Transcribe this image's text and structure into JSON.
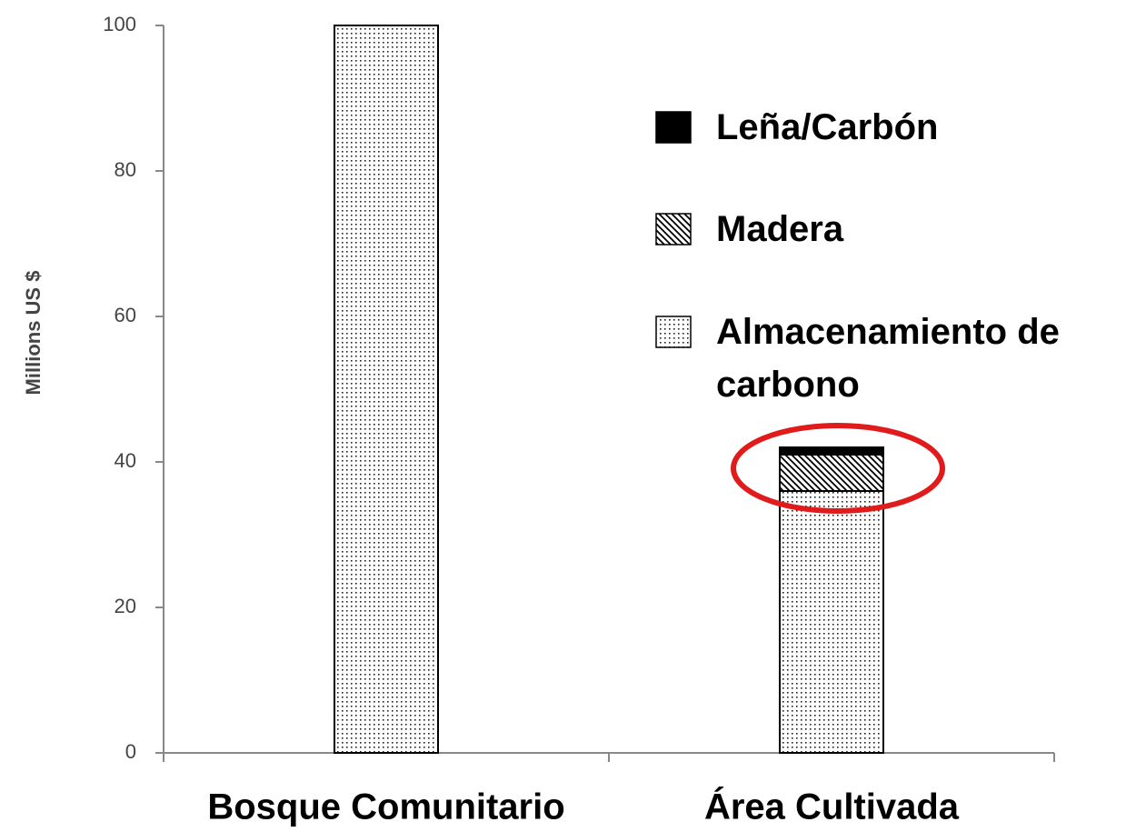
{
  "chart_data": {
    "type": "stacked_bar",
    "categories": [
      "Bosque Comunitario",
      "Área Cultivada"
    ],
    "y_label": "Millions US $",
    "ylim": [
      0,
      100
    ],
    "yticks": [
      0,
      20,
      40,
      60,
      80,
      100
    ],
    "series": [
      {
        "name": "Almacenamiento de carbono",
        "color": "#000000",
        "pattern": "dots",
        "values": [
          100,
          36
        ]
      },
      {
        "name": "Madera",
        "color": "#000000",
        "pattern": "hatch",
        "values": [
          0,
          5
        ]
      },
      {
        "name": "Leña/Carbón",
        "color": "#000000",
        "pattern": "solid",
        "values": [
          0,
          1
        ]
      }
    ]
  }
}
